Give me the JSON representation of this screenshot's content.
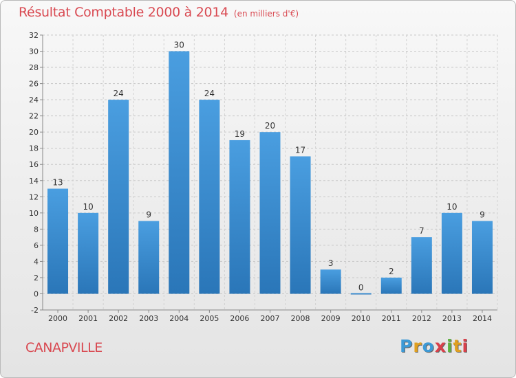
{
  "chart_data": {
    "type": "bar",
    "title": "Résultat Comptable 2000 à 2014",
    "subtitle": "(en milliers d'€)",
    "categories": [
      "2000",
      "2001",
      "2002",
      "2003",
      "2004",
      "2005",
      "2006",
      "2007",
      "2008",
      "2009",
      "2010",
      "2011",
      "2012",
      "2013",
      "2014"
    ],
    "values": [
      13,
      10,
      24,
      9,
      30,
      24,
      19,
      20,
      17,
      3,
      0,
      2,
      7,
      10,
      9
    ],
    "ylim": [
      -2,
      32
    ],
    "yticks": [
      -2,
      0,
      2,
      4,
      6,
      8,
      10,
      12,
      14,
      16,
      18,
      20,
      22,
      24,
      26,
      28,
      30,
      32
    ],
    "xlabel": "",
    "ylabel": "",
    "grid": "y",
    "bar_color": "#4a9ee0",
    "bar_color_dark": "#2a76b8"
  },
  "commune": "CANAPVILLE",
  "logo": {
    "letters": [
      "P",
      "r",
      "o",
      "x",
      "i",
      "t",
      "i"
    ],
    "colors": [
      "#3d9ad6",
      "#e0a020",
      "#3d9ad6",
      "#d9404a",
      "#5fb040",
      "#e0a020",
      "#d9404a"
    ]
  }
}
